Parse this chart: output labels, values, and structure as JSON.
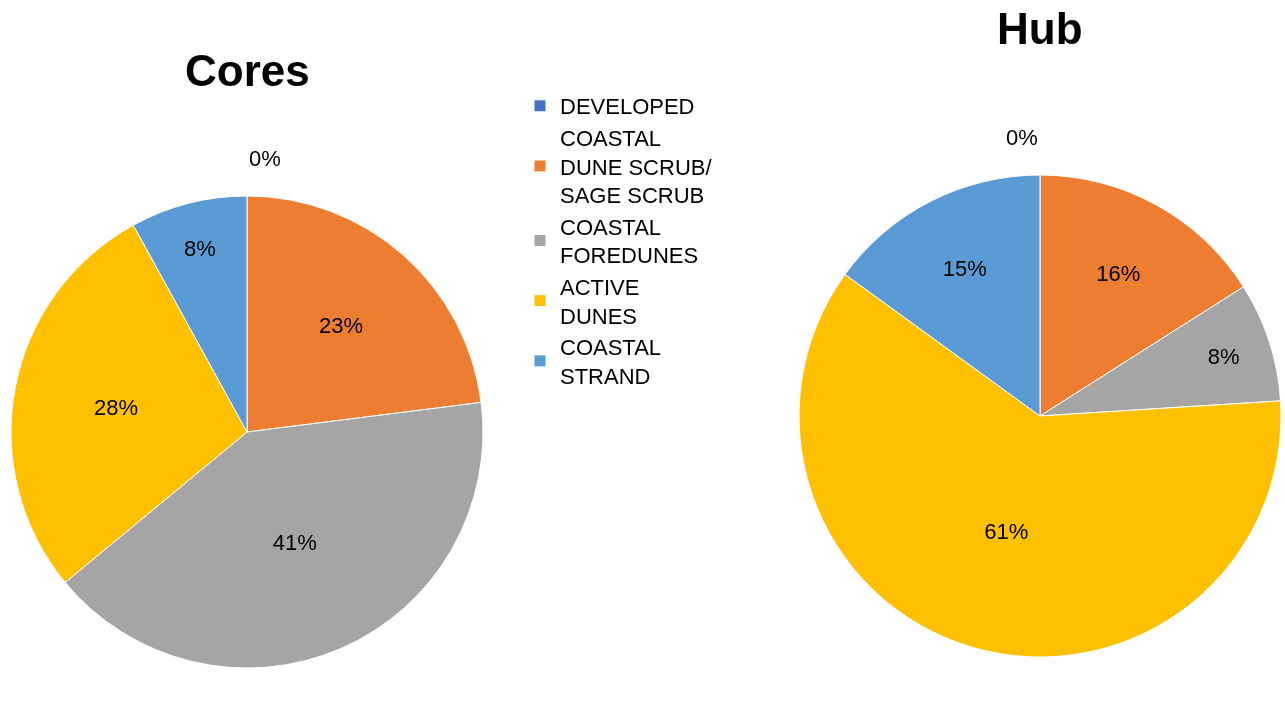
{
  "chart_data": {
    "type": "pie",
    "categories": [
      "DEVELOPED",
      "COASTAL DUNE SCRUB/ SAGE SCRUB",
      "COASTAL FOREDUNES",
      "ACTIVE DUNES",
      "COASTAL STRAND"
    ],
    "colors": [
      "#4472c4",
      "#ed7d31",
      "#a5a5a5",
      "#ffc000",
      "#5b9bd5"
    ],
    "legend": "right",
    "series": [
      {
        "name": "Cores",
        "values": [
          0,
          23,
          41,
          28,
          8
        ],
        "value_labels": [
          "0%",
          "23%",
          "41%",
          "28%",
          "8%"
        ]
      },
      {
        "name": "Hub",
        "values": [
          0,
          16,
          8,
          61,
          15
        ],
        "value_labels": [
          "0%",
          "16%",
          "8%",
          "61%",
          "15%"
        ]
      }
    ]
  }
}
